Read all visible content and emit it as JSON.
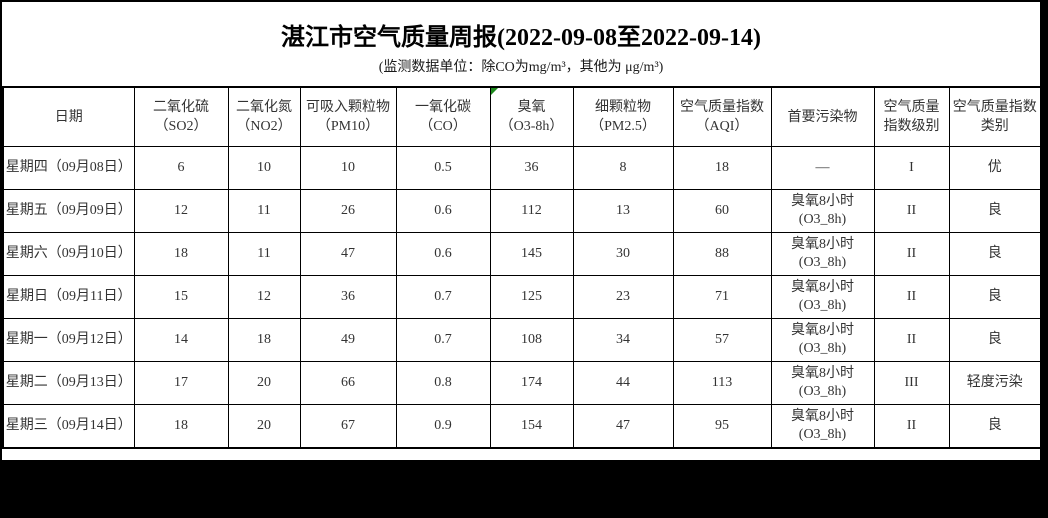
{
  "title": "湛江市空气质量周报(2022-09-08至2022-09-14)",
  "subtitle": "(监测数据单位：除CO为mg/m³，其他为 μg/m³)",
  "colors": {
    "frame_background": "#000000",
    "sheet_background": "#ffffff",
    "border": "#000000",
    "text": "#333333",
    "title_text": "#000000",
    "error_indicator_green": "#1d8a1d"
  },
  "table": {
    "column_keys": [
      "date",
      "so2",
      "no2",
      "pm10",
      "co",
      "o3",
      "pm25",
      "aqi",
      "pollutant",
      "level",
      "category"
    ],
    "headers": [
      {
        "key": "date",
        "lines": [
          "日期"
        ]
      },
      {
        "key": "so2",
        "lines": [
          "二氧化硫",
          "（SO2）"
        ]
      },
      {
        "key": "no2",
        "lines": [
          "二氧化氮",
          "（NO2）"
        ]
      },
      {
        "key": "pm10",
        "lines": [
          "可吸入颗粒物",
          "（PM10）"
        ]
      },
      {
        "key": "co",
        "lines": [
          "一氧化碳",
          "（CO）"
        ]
      },
      {
        "key": "o3",
        "lines": [
          "臭氧",
          "（O3-8h）"
        ],
        "error_marker": true
      },
      {
        "key": "pm25",
        "lines": [
          "细颗粒物",
          "（PM2.5）"
        ]
      },
      {
        "key": "aqi",
        "lines": [
          "空气质量指数",
          "（AQI）"
        ]
      },
      {
        "key": "pollutant",
        "lines": [
          "首要污染物"
        ]
      },
      {
        "key": "level",
        "lines": [
          "空气质量",
          "指数级别"
        ]
      },
      {
        "key": "category",
        "lines": [
          "空气质量指数",
          "类别"
        ]
      }
    ],
    "rows": [
      {
        "date": "星期四（09月08日）",
        "so2": "6",
        "no2": "10",
        "pm10": "10",
        "co": "0.5",
        "o3": "36",
        "pm25": "8",
        "aqi": "18",
        "pollutant": [
          "—"
        ],
        "level": "I",
        "category": "优"
      },
      {
        "date": "星期五（09月09日）",
        "so2": "12",
        "no2": "11",
        "pm10": "26",
        "co": "0.6",
        "o3": "112",
        "pm25": "13",
        "aqi": "60",
        "pollutant": [
          "臭氧8小时",
          "(O3_8h)"
        ],
        "level": "II",
        "category": "良"
      },
      {
        "date": "星期六（09月10日）",
        "so2": "18",
        "no2": "11",
        "pm10": "47",
        "co": "0.6",
        "o3": "145",
        "pm25": "30",
        "aqi": "88",
        "pollutant": [
          "臭氧8小时",
          "(O3_8h)"
        ],
        "level": "II",
        "category": "良"
      },
      {
        "date": "星期日（09月11日）",
        "so2": "15",
        "no2": "12",
        "pm10": "36",
        "co": "0.7",
        "o3": "125",
        "pm25": "23",
        "aqi": "71",
        "pollutant": [
          "臭氧8小时",
          "(O3_8h)"
        ],
        "level": "II",
        "category": "良"
      },
      {
        "date": "星期一（09月12日）",
        "so2": "14",
        "no2": "18",
        "pm10": "49",
        "co": "0.7",
        "o3": "108",
        "pm25": "34",
        "aqi": "57",
        "pollutant": [
          "臭氧8小时",
          "(O3_8h)"
        ],
        "level": "II",
        "category": "良"
      },
      {
        "date": "星期二（09月13日）",
        "so2": "17",
        "no2": "20",
        "pm10": "66",
        "co": "0.8",
        "o3": "174",
        "pm25": "44",
        "aqi": "113",
        "pollutant": [
          "臭氧8小时",
          "(O3_8h)"
        ],
        "level": "III",
        "category": "轻度污染"
      },
      {
        "date": "星期三（09月14日）",
        "so2": "18",
        "no2": "20",
        "pm10": "67",
        "co": "0.9",
        "o3": "154",
        "pm25": "47",
        "aqi": "95",
        "pollutant": [
          "臭氧8小时",
          "(O3_8h)"
        ],
        "level": "II",
        "category": "良"
      }
    ]
  }
}
